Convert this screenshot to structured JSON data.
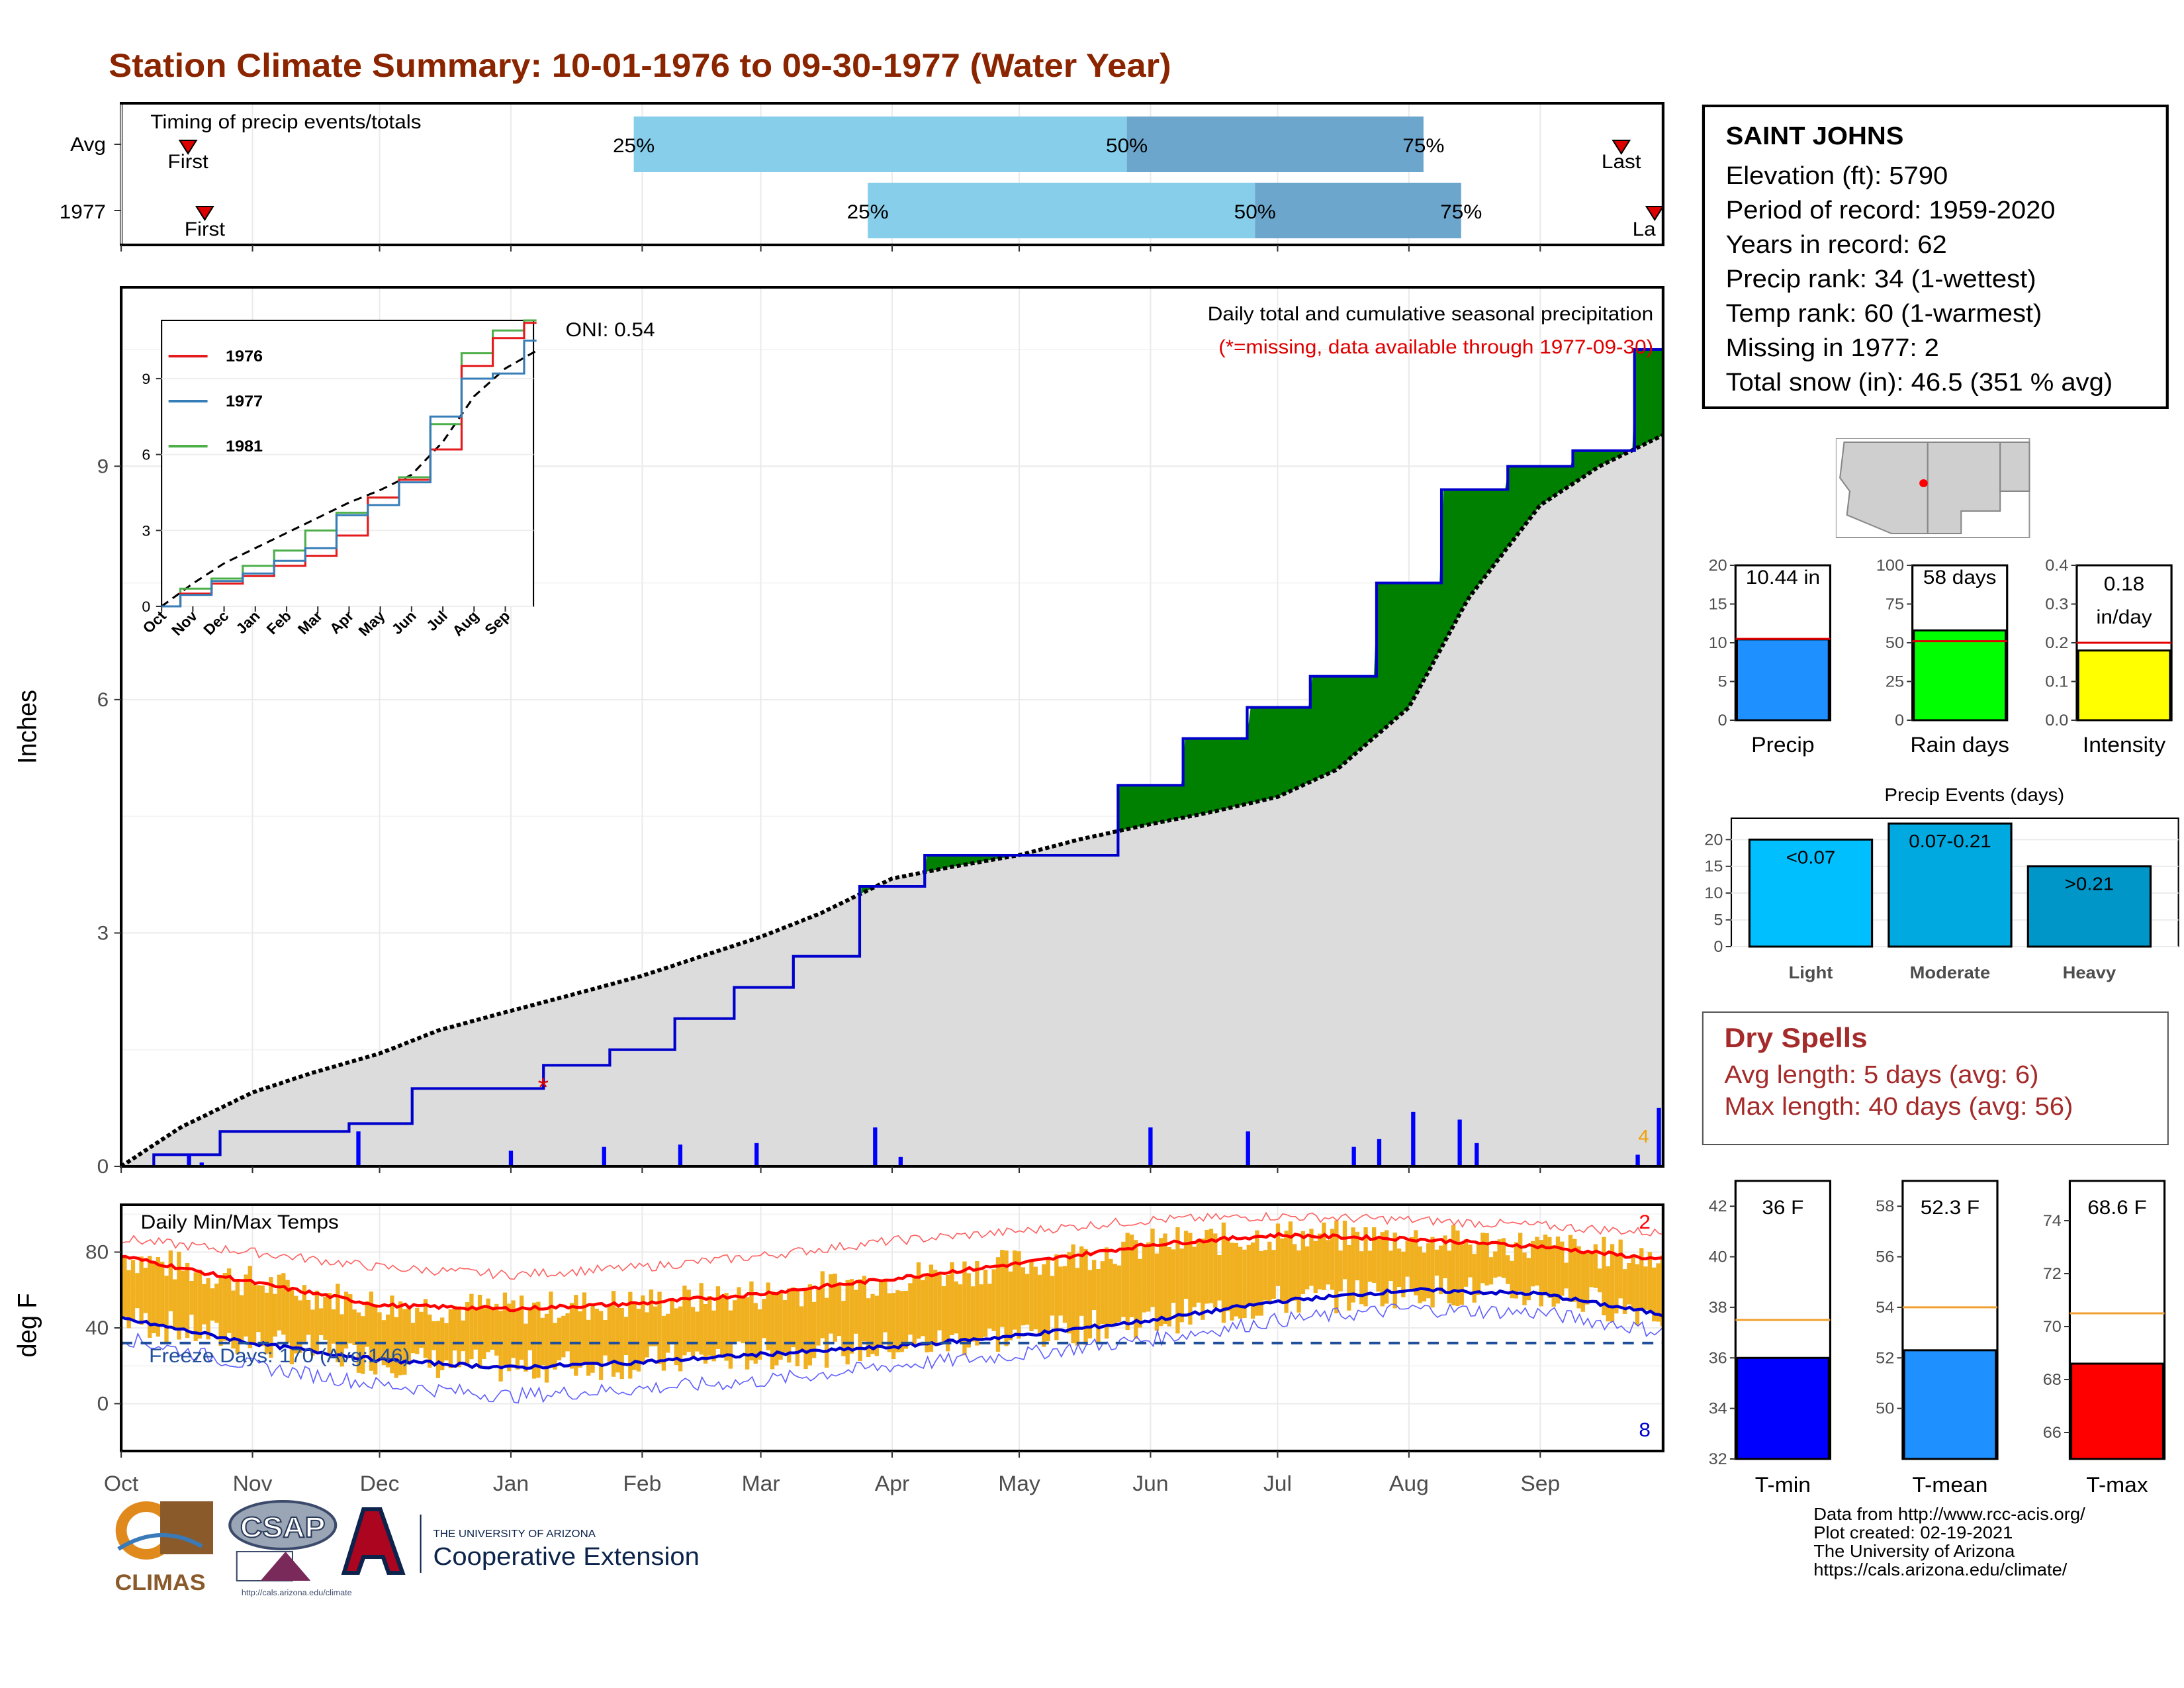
{
  "title": "Station Climate Summary: 10-01-1976 to 09-30-1977 (Water Year)",
  "colors": {
    "title": "#8b2500",
    "above_avg": "#008000",
    "below_avg": "#8b5a00",
    "obs_line": "#0000cc",
    "normal_fill": "#dcdcdc",
    "precip_bar": "#0000ff",
    "tmax_line": "#ff0000",
    "tmin_line": "#0000cc",
    "temp_bar": "#f0b020",
    "dry_spells": "#a52a2a"
  },
  "timing": {
    "title": "Timing of precip events/totals",
    "rows": [
      {
        "label": "Avg",
        "first": "First",
        "last": "Last",
        "p25": "25%",
        "p50": "50%",
        "p75": "75%"
      },
      {
        "label": "1977",
        "first": "First",
        "last": "La",
        "p25": "25%",
        "p50": "50%",
        "p75": "75%"
      }
    ]
  },
  "main": {
    "ylabel": "Inches",
    "legend_title": "Daily total and cumulative seasonal precipitation",
    "legend_note": "(*=missing, data available through 1977-09-30)",
    "oni": "ONI: 0.54",
    "yticks": [
      "0",
      "3",
      "6",
      "9"
    ],
    "months": [
      "Oct",
      "Nov",
      "Dec",
      "Jan",
      "Feb",
      "Mar",
      "Apr",
      "May",
      "Jun",
      "Jul",
      "Aug",
      "Sep"
    ],
    "corner_label": "4"
  },
  "inset": {
    "legend": [
      {
        "year": "1976",
        "color": "#e41a1c"
      },
      {
        "year": "1977",
        "color": "#377eb8"
      },
      {
        "year": "1981",
        "color": "#4daf4a"
      }
    ],
    "yticks": [
      "0",
      "3",
      "6",
      "9"
    ],
    "months": [
      "Oct",
      "Nov",
      "Dec",
      "Jan",
      "Feb",
      "Mar",
      "Apr",
      "May",
      "Jun",
      "Jul",
      "Aug",
      "Sep"
    ]
  },
  "temps": {
    "ylabel": "deg F",
    "title": "Daily Min/Max Temps",
    "freeze": "Freeze Days: 170 (Avg:146)",
    "yticks": [
      "0",
      "40",
      "80"
    ],
    "record_high_count": "2",
    "record_low_count": "8",
    "months": [
      "Oct",
      "Nov",
      "Dec",
      "Jan",
      "Feb",
      "Mar",
      "Apr",
      "May",
      "Jun",
      "Jul",
      "Aug",
      "Sep"
    ]
  },
  "station": {
    "name": "SAINT JOHNS",
    "lines": [
      "Elevation (ft): 5790",
      "Period of record: 1959-2020",
      "Years in record: 62",
      "Precip rank: 34 (1-wettest)",
      "Temp rank: 60 (1-warmest)",
      "Missing in 1977: 2",
      "Total snow (in): 46.5 (351 % avg)"
    ]
  },
  "mini_bars": [
    {
      "label": "Precip",
      "value_label": "10.44 in",
      "value": 10.44,
      "avg": 10.5,
      "ymax": 20,
      "ticks": [
        "0",
        "5",
        "10",
        "15",
        "20"
      ],
      "color": "#1e90ff"
    },
    {
      "label": "Rain days",
      "value_label": "58 days",
      "value": 58,
      "avg": 51,
      "ymax": 100,
      "ticks": [
        "0",
        "25",
        "50",
        "75",
        "100"
      ],
      "color": "#00ff00"
    },
    {
      "label": "Intensity",
      "value_label": "0.18 in/day",
      "value_label_1": "0.18",
      "value_label_2": "in/day",
      "value": 0.18,
      "avg": 0.2,
      "ymax": 0.4,
      "ticks": [
        "0.0",
        "0.1",
        "0.2",
        "0.3",
        "0.4"
      ],
      "color": "#ffff00"
    }
  ],
  "events": {
    "title": "Precip Events (days)",
    "ticks": [
      "0",
      "5",
      "10",
      "15",
      "20"
    ],
    "bars": [
      {
        "category": "Light",
        "label": "<0.07",
        "value": 20,
        "color": "#00bfff"
      },
      {
        "category": "Moderate",
        "label": "0.07-0.21",
        "value": 23,
        "color": "#00a9e0"
      },
      {
        "category": "Heavy",
        "label": ">0.21",
        "value": 15,
        "color": "#0096c8"
      }
    ]
  },
  "dry_spells": {
    "title": "Dry Spells",
    "avg": "Avg length: 5 days (avg: 6)",
    "max": "Max length: 40 days (avg: 56)"
  },
  "temp_bars": [
    {
      "label": "T-min",
      "value_label": "36 F",
      "value": 36,
      "avg": 37.5,
      "ymin": 32,
      "ymax": 43,
      "ticks": [
        "32",
        "34",
        "36",
        "38",
        "40",
        "42"
      ],
      "color": "#0000ff"
    },
    {
      "label": "T-mean",
      "value_label": "52.3 F",
      "value": 52.3,
      "avg": 54,
      "ymin": 48,
      "ymax": 59,
      "ticks": [
        "50",
        "52",
        "54",
        "56",
        "58"
      ],
      "color": "#1e90ff"
    },
    {
      "label": "T-max",
      "value_label": "68.6 F",
      "value": 68.6,
      "avg": 70.5,
      "ymin": 65,
      "ymax": 75.5,
      "ticks": [
        "66",
        "68",
        "70",
        "72",
        "74"
      ],
      "color": "#ff0000"
    }
  ],
  "logos": {
    "climas": "CLIMAS",
    "csap": "CSAP",
    "csap_url": "http://cals.arizona.edu/climate",
    "ua_small": "THE UNIVERSITY OF ARIZONA",
    "ua_big": "Cooperative Extension"
  },
  "footer": [
    "Data from http://www.rcc-acis.org/",
    "Plot created: 02-19-2021",
    "The University of Arizona",
    "https://cals.arizona.edu/climate/"
  ],
  "chart_data": [
    {
      "type": "area",
      "title": "Daily total and cumulative seasonal precipitation",
      "ylabel": "Inches",
      "ylim": [
        0,
        11.3
      ],
      "x": [
        "1976-10-01",
        "1976-10-15",
        "1976-11-01",
        "1976-11-15",
        "1976-12-01",
        "1976-12-15",
        "1977-01-01",
        "1977-01-15",
        "1977-02-01",
        "1977-02-15",
        "1977-03-01",
        "1977-03-15",
        "1977-04-01",
        "1977-04-15",
        "1977-05-01",
        "1977-05-15",
        "1977-06-01",
        "1977-06-15",
        "1977-07-01",
        "1977-07-15",
        "1977-08-01",
        "1977-08-15",
        "1977-09-01",
        "1977-09-15",
        "1977-09-30"
      ],
      "series": [
        {
          "name": "1977",
          "values": [
            0,
            0.15,
            0.45,
            0.45,
            0.55,
            1.0,
            1.0,
            1.3,
            1.5,
            1.9,
            2.3,
            2.7,
            3.6,
            4.0,
            4.0,
            4.0,
            4.9,
            5.5,
            5.9,
            6.3,
            7.5,
            8.7,
            9.0,
            9.2,
            10.5
          ]
        },
        {
          "values": [
            0,
            0.5,
            0.95,
            1.2,
            1.45,
            1.75,
            2.0,
            2.2,
            2.45,
            2.7,
            2.95,
            3.25,
            3.7,
            3.85,
            4.0,
            4.2,
            4.4,
            4.55,
            4.75,
            5.1,
            5.9,
            7.3,
            8.5,
            9.0,
            9.4
          ]
        }
      ],
      "daily_precip": [
        {
          "x": "1976-10-17",
          "y": 0.15
        },
        {
          "x": "1976-10-20",
          "y": 0.05
        },
        {
          "x": "1976-11-26",
          "y": 0.45
        },
        {
          "x": "1977-01-01",
          "y": 0.2
        },
        {
          "x": "1977-01-23",
          "y": 0.25
        },
        {
          "x": "1977-02-10",
          "y": 0.28
        },
        {
          "x": "1977-02-28",
          "y": 0.3
        },
        {
          "x": "1977-03-28",
          "y": 0.5
        },
        {
          "x": "1977-04-03",
          "y": 0.12
        },
        {
          "x": "1977-06-01",
          "y": 0.5
        },
        {
          "x": "1977-06-24",
          "y": 0.45
        },
        {
          "x": "1977-07-19",
          "y": 0.25
        },
        {
          "x": "1977-07-25",
          "y": 0.35
        },
        {
          "x": "1977-08-02",
          "y": 0.7
        },
        {
          "x": "1977-08-13",
          "y": 0.6
        },
        {
          "x": "1977-08-17",
          "y": 0.3
        },
        {
          "x": "1977-09-24",
          "y": 0.15
        },
        {
          "x": "1977-09-29",
          "y": 0.75
        }
      ]
    },
    {
      "type": "line",
      "title": "Daily Min/Max Temps",
      "ylabel": "deg F",
      "ylim": [
        -25,
        105
      ],
      "x": [
        "1976-10-01",
        "1976-11-01",
        "1976-12-01",
        "1977-01-01",
        "1977-02-01",
        "1977-03-01",
        "1977-04-01",
        "1977-05-01",
        "1977-06-01",
        "1977-07-01",
        "1977-08-01",
        "1977-09-01",
        "1977-09-30"
      ],
      "series": [
        {
          "values": [
            78,
            64,
            52,
            50,
            53,
            58,
            66,
            74,
            84,
            89,
            87,
            83,
            76
          ]
        },
        {
          "values": [
            45,
            32,
            23,
            19,
            22,
            26,
            30,
            36,
            44,
            54,
            60,
            58,
            47
          ]
        },
        {
          "values": [
            87,
            80,
            72,
            68,
            72,
            78,
            86,
            91,
            97,
            99,
            97,
            94,
            90
          ]
        },
        {
          "values": [
            35,
            20,
            10,
            4,
            8,
            12,
            20,
            26,
            34,
            44,
            50,
            48,
            38
          ]
        }
      ],
      "freeze_line": 32
    }
  ]
}
